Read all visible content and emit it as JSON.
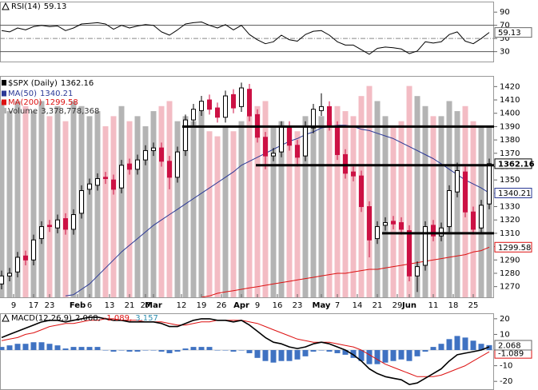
{
  "chart_data": [
    {
      "type": "line",
      "name": "RSI(14)",
      "color": "#000000",
      "values": [
        62,
        60,
        66,
        63,
        68,
        70,
        68,
        69,
        62,
        66,
        72,
        73,
        74,
        72,
        64,
        70,
        66,
        69,
        71,
        70,
        60,
        55,
        63,
        72,
        74,
        75,
        70,
        66,
        71,
        63,
        70,
        56,
        48,
        42,
        45,
        55,
        48,
        46,
        56,
        61,
        62,
        55,
        45,
        40,
        40,
        33,
        26,
        35,
        37,
        36,
        34,
        27,
        31,
        45,
        43,
        45,
        56,
        60,
        46,
        42,
        50,
        59.13
      ],
      "ylim": [
        15,
        106
      ],
      "yticks": [
        90,
        70,
        50,
        30
      ],
      "levels": [
        70,
        50,
        30
      ]
    },
    {
      "type": "candlestick",
      "title": "$SPX (Daily)",
      "open": [
        1272,
        1278,
        1281,
        1293,
        1290,
        1306,
        1316,
        1314,
        1321,
        1313,
        1325,
        1343,
        1346,
        1352,
        1350,
        1344,
        1362,
        1358,
        1365,
        1372,
        1374,
        1364,
        1352,
        1372,
        1395,
        1402,
        1410,
        1404,
        1397,
        1414,
        1405,
        1418,
        1399,
        1382,
        1368,
        1371,
        1390,
        1376,
        1368,
        1389,
        1402,
        1405,
        1390,
        1369,
        1356,
        1353,
        1330,
        1306,
        1316,
        1319,
        1318,
        1312,
        1278,
        1286,
        1316,
        1308,
        1315,
        1341,
        1356,
        1326,
        1314,
        1332
      ],
      "high": [
        1282,
        1284,
        1296,
        1297,
        1309,
        1319,
        1320,
        1324,
        1325,
        1328,
        1346,
        1351,
        1355,
        1356,
        1354,
        1365,
        1366,
        1369,
        1376,
        1378,
        1378,
        1368,
        1375,
        1399,
        1407,
        1413,
        1414,
        1408,
        1417,
        1418,
        1423,
        1422,
        1403,
        1386,
        1374,
        1394,
        1394,
        1380,
        1394,
        1407,
        1415,
        1409,
        1394,
        1373,
        1360,
        1357,
        1334,
        1319,
        1322,
        1323,
        1322,
        1316,
        1289,
        1319,
        1320,
        1318,
        1346,
        1363,
        1360,
        1330,
        1335,
        1366
      ],
      "low": [
        1268,
        1274,
        1277,
        1286,
        1286,
        1302,
        1311,
        1310,
        1309,
        1309,
        1321,
        1339,
        1342,
        1347,
        1339,
        1340,
        1354,
        1354,
        1361,
        1368,
        1360,
        1343,
        1348,
        1368,
        1391,
        1398,
        1399,
        1393,
        1393,
        1400,
        1401,
        1394,
        1378,
        1358,
        1364,
        1367,
        1372,
        1360,
        1364,
        1385,
        1398,
        1387,
        1365,
        1351,
        1349,
        1326,
        1292,
        1302,
        1312,
        1313,
        1309,
        1274,
        1266,
        1282,
        1304,
        1304,
        1311,
        1337,
        1322,
        1309,
        1310,
        1328
      ],
      "close": [
        1278,
        1280,
        1292,
        1290,
        1305,
        1315,
        1315,
        1320,
        1313,
        1324,
        1342,
        1347,
        1351,
        1351,
        1343,
        1361,
        1358,
        1365,
        1372,
        1374,
        1364,
        1352,
        1371,
        1395,
        1403,
        1409,
        1403,
        1397,
        1413,
        1404,
        1419,
        1398,
        1382,
        1368,
        1370,
        1390,
        1376,
        1367,
        1390,
        1403,
        1405,
        1391,
        1369,
        1355,
        1353,
        1330,
        1305,
        1315,
        1318,
        1317,
        1313,
        1278,
        1285,
        1315,
        1308,
        1314,
        1342,
        1357,
        1326,
        1313,
        1331,
        1362.16
      ],
      "up_color": "#000000",
      "down_color": "#cc1144",
      "ylim": [
        1262,
        1428
      ],
      "yticks": [
        1270,
        1280,
        1290,
        1300,
        1310,
        1320,
        1330,
        1340,
        1350,
        1360,
        1370,
        1380,
        1390,
        1400,
        1410,
        1420
      ],
      "xlim": [
        -0.2,
        61.6
      ],
      "xticks": [
        {
          "value": 1.5,
          "label": "9"
        },
        {
          "value": 4,
          "label": "17"
        },
        {
          "value": 6,
          "label": "23"
        },
        {
          "value": 9.5,
          "label": "Feb"
        },
        {
          "value": 11,
          "label": "6"
        },
        {
          "value": 13.5,
          "label": "13"
        },
        {
          "value": 16,
          "label": "21"
        },
        {
          "value": 18,
          "label": "27"
        },
        {
          "value": 19,
          "label": "Mar"
        },
        {
          "value": 22.5,
          "label": "12"
        },
        {
          "value": 25,
          "label": "19"
        },
        {
          "value": 27.5,
          "label": "26"
        },
        {
          "value": 30,
          "label": "Apr"
        },
        {
          "value": 32,
          "label": "9"
        },
        {
          "value": 34.5,
          "label": "16"
        },
        {
          "value": 37,
          "label": "23"
        },
        {
          "value": 40,
          "label": "May"
        },
        {
          "value": 42,
          "label": "7"
        },
        {
          "value": 44.5,
          "label": "14"
        },
        {
          "value": 47,
          "label": "21"
        },
        {
          "value": 49.5,
          "label": "29"
        },
        {
          "value": 51,
          "label": "Jun"
        },
        {
          "value": 54,
          "label": "11"
        },
        {
          "value": 56.5,
          "label": "18"
        },
        {
          "value": 59,
          "label": "25"
        }
      ],
      "overlays": [
        {
          "name": "MA(50)",
          "color": "#2a3896",
          "values": [
            null,
            null,
            null,
            null,
            null,
            null,
            null,
            null,
            1263,
            1264,
            1268,
            1272,
            1278,
            1284,
            1290,
            1296,
            1301,
            1306,
            1311,
            1316,
            1320,
            1324,
            1328,
            1332,
            1336,
            1340,
            1344,
            1348,
            1352,
            1356,
            1361,
            1364,
            1367,
            1370,
            1373,
            1376,
            1379,
            1381,
            1384,
            1386,
            1389,
            1390,
            1391,
            1391,
            1390,
            1388,
            1387,
            1385,
            1383,
            1381,
            1378,
            1375,
            1372,
            1369,
            1366,
            1362,
            1358,
            1354,
            1350,
            1347,
            1344,
            1340.21
          ]
        },
        {
          "name": "MA(200)",
          "color": "#dd1111",
          "values": [
            null,
            null,
            null,
            null,
            null,
            null,
            null,
            null,
            null,
            null,
            null,
            null,
            null,
            null,
            null,
            null,
            null,
            null,
            null,
            null,
            null,
            null,
            null,
            null,
            null,
            1262,
            1263,
            1265,
            1266,
            1267,
            1268,
            1269,
            1270,
            1271,
            1272,
            1273,
            1274,
            1275,
            1276,
            1277,
            1278,
            1279,
            1280,
            1280,
            1281,
            1282,
            1283,
            1283,
            1284,
            1285,
            1286,
            1287,
            1288,
            1289,
            1290,
            1291,
            1292,
            1293,
            1294,
            1296,
            1297,
            1299.58
          ]
        }
      ],
      "volume": {
        "name": "Volume",
        "last_label": "3,378,778,368",
        "ylim": [
          0,
          4400000000
        ],
        "up_color": "#b4b4b4",
        "down_color": "#f3bcc4",
        "values": [
          3900000000,
          3700000000,
          3900000000,
          3800000000,
          3700000000,
          3900000000,
          3600000000,
          3800000000,
          3500000000,
          3900000000,
          3800000000,
          3600000000,
          3700000000,
          3400000000,
          3600000000,
          3800000000,
          3500000000,
          3600000000,
          3400000000,
          3700000000,
          3800000000,
          3900000000,
          3500000000,
          3600000000,
          3500000000,
          3700000000,
          3300000000,
          3200000000,
          3400000000,
          3300000000,
          3500000000,
          3600000000,
          3800000000,
          3900000000,
          3400000000,
          3500000000,
          3400000000,
          3300000000,
          3600000000,
          3400000000,
          3600000000,
          3500000000,
          3800000000,
          3700000000,
          3600000000,
          4000000000,
          4200000000,
          3900000000,
          3600000000,
          3400000000,
          3500000000,
          4200000000,
          4000000000,
          3800000000,
          3600000000,
          3600000000,
          3900000000,
          3700000000,
          3800000000,
          3500000000,
          3400000000,
          3378778368
        ]
      },
      "levels": [
        {
          "y": 1390,
          "x": [
            22.6,
            61.6
          ]
        },
        {
          "y": 1361,
          "x": [
            31.8,
            61.6
          ]
        },
        {
          "y": 1310,
          "x": [
            47.6,
            61.6
          ]
        }
      ]
    },
    {
      "type": "macd",
      "title": "MACD(12,26,9)",
      "series": [
        {
          "color": "#000000",
          "values": [
            8,
            10,
            12,
            14,
            16,
            18,
            19,
            19,
            18,
            19,
            20,
            21,
            21,
            20,
            19,
            19,
            18,
            18,
            18,
            18,
            17,
            15,
            15,
            17,
            19,
            20,
            20,
            19,
            19,
            18,
            19,
            16,
            12,
            8,
            5,
            4,
            2,
            1,
            2,
            4,
            5,
            4,
            2,
            0,
            -3,
            -7,
            -12,
            -15,
            -17,
            -18,
            -19,
            -22,
            -21,
            -18,
            -15,
            -12,
            -7,
            -3,
            -2,
            -1,
            0,
            2.068
          ]
        },
        {
          "color": "#dd1111",
          "values": [
            6,
            7,
            8,
            10,
            11,
            13,
            15,
            16,
            17,
            17,
            18,
            19,
            19,
            20,
            20,
            19,
            19,
            19,
            18,
            18,
            18,
            17,
            16,
            16,
            17,
            18,
            18,
            19,
            19,
            19,
            19,
            18,
            17,
            15,
            13,
            11,
            9,
            7,
            6,
            5,
            5,
            5,
            4,
            3,
            2,
            0,
            -3,
            -6,
            -9,
            -11,
            -13,
            -15,
            -17,
            -17,
            -17,
            -16,
            -14,
            -12,
            -10,
            -7,
            -4,
            -1.089
          ]
        }
      ],
      "histogram": {
        "color": "#3f72c2",
        "values": [
          2,
          3,
          4,
          4,
          5,
          5,
          4,
          3,
          1,
          2,
          2,
          2,
          2,
          0,
          -1,
          0,
          -1,
          -1,
          0,
          0,
          -1,
          -2,
          -1,
          1,
          2,
          2,
          2,
          0,
          0,
          -1,
          0,
          -2,
          -5,
          -7,
          -8,
          -7,
          -7,
          -6,
          -4,
          -1,
          0,
          -1,
          -2,
          -3,
          -5,
          -7,
          -9,
          -9,
          -8,
          -7,
          -6,
          -7,
          -4,
          -1,
          2,
          4,
          7,
          9,
          8,
          6,
          4,
          3.157
        ]
      },
      "legend_labels": [
        "2.068,",
        "-1.089,",
        "3.157"
      ],
      "ylim": [
        -25,
        23.5
      ],
      "yticks": [
        20,
        10,
        0,
        -10,
        -20
      ]
    }
  ]
}
